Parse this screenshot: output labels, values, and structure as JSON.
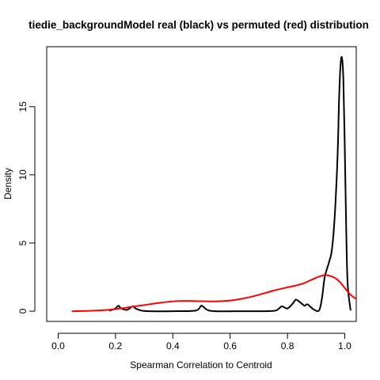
{
  "chart_data": {
    "type": "line",
    "title": "tiedie_backgroundModel  real (black) vs permuted (red) distribution",
    "xlabel": "Spearman Correlation to Centroid",
    "ylabel": "Density",
    "xlim": [
      -0.04,
      1.04
    ],
    "ylim": [
      -0.75,
      19.4
    ],
    "x_ticks": [
      "0.0",
      "0.2",
      "0.4",
      "0.6",
      "0.8",
      "1.0"
    ],
    "y_ticks": [
      "0",
      "5",
      "10",
      "15"
    ],
    "grid": false,
    "legend": "none",
    "colors": {
      "real": "#000000",
      "permuted": "#ff0000",
      "frame": "#000000"
    },
    "series": [
      {
        "color": "#000000",
        "x": [
          0.18,
          0.2,
          0.21,
          0.22,
          0.24,
          0.26,
          0.27,
          0.29,
          0.32,
          0.4,
          0.48,
          0.5,
          0.52,
          0.55,
          0.65,
          0.72,
          0.76,
          0.78,
          0.8,
          0.82,
          0.83,
          0.85,
          0.86,
          0.87,
          0.89,
          0.91,
          0.92,
          0.93,
          0.945,
          0.955,
          0.965,
          0.975,
          0.98,
          0.985,
          0.99,
          0.995,
          1.0,
          1.005,
          1.01,
          1.02
        ],
        "y": [
          0.05,
          0.2,
          0.4,
          0.2,
          0.1,
          0.35,
          0.2,
          0.05,
          0.0,
          0.0,
          0.05,
          0.4,
          0.1,
          0.0,
          0.0,
          0.0,
          0.05,
          0.35,
          0.2,
          0.6,
          0.85,
          0.55,
          0.4,
          0.5,
          0.15,
          0.05,
          0.9,
          2.5,
          3.6,
          4.5,
          7.0,
          11.5,
          15.5,
          18.0,
          18.6,
          17.0,
          12.0,
          6.0,
          2.0,
          0.1
        ]
      },
      {
        "color": "#ff0000",
        "x": [
          0.05,
          0.1,
          0.15,
          0.2,
          0.25,
          0.3,
          0.35,
          0.4,
          0.45,
          0.5,
          0.55,
          0.6,
          0.65,
          0.7,
          0.75,
          0.8,
          0.85,
          0.9,
          0.93,
          0.96,
          0.98,
          1.0,
          1.02,
          1.04
        ],
        "y": [
          0.0,
          0.02,
          0.06,
          0.15,
          0.3,
          0.45,
          0.6,
          0.72,
          0.75,
          0.73,
          0.72,
          0.78,
          0.95,
          1.2,
          1.5,
          1.75,
          2.0,
          2.45,
          2.65,
          2.5,
          2.2,
          1.7,
          1.2,
          0.9
        ]
      }
    ]
  }
}
